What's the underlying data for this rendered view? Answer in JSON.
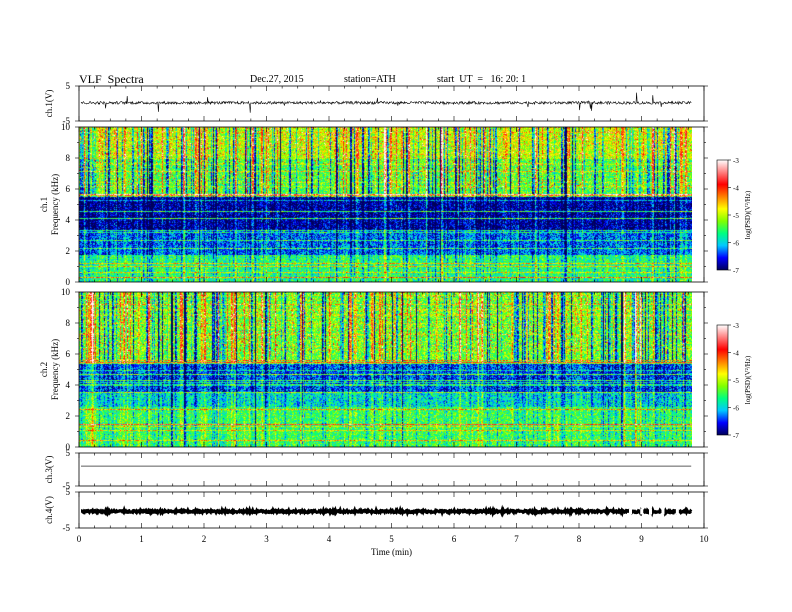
{
  "header": {
    "title": "VLF  Spectra",
    "date": "Dec.27, 2015",
    "station": "station=ATH",
    "start_ut": "start  UT  =   16: 20: 1"
  },
  "chart_data": [
    {
      "type": "line",
      "panel": "ch1-waveform",
      "ylabel": "ch.1(V)",
      "yticks": [
        "5",
        "-5"
      ],
      "ylim": [
        -5,
        5
      ],
      "xlim": [
        0,
        10
      ],
      "x_end": 9.8,
      "baseline": 0.2,
      "noise_amplitude": 0.4
    },
    {
      "type": "heatmap",
      "panel": "ch1-spectrogram",
      "ylabel": "ch.1",
      "ylabel2": "Frequency  (kHz)",
      "yticks": [
        "0",
        "2",
        "4",
        "6",
        "8",
        "10"
      ],
      "ylim": [
        0,
        10
      ],
      "xlim": [
        0,
        10
      ],
      "x_end": 9.8,
      "colorbar": {
        "label": "log(PSD)(V²/Hz)",
        "ticks": [
          "-3",
          "-4",
          "-5",
          "-6",
          "-7"
        ],
        "range": [
          -7,
          -3
        ],
        "colors": [
          "#00005a",
          "#0000ff",
          "#00c8ff",
          "#00ff80",
          "#80ff00",
          "#ffff00",
          "#ff8000",
          "#ff0000",
          "#ff8080",
          "#ffffff"
        ]
      },
      "bands": [
        {
          "f_from": 0,
          "f_to": 1.8,
          "level": -5.6
        },
        {
          "f_from": 1.8,
          "f_to": 3.4,
          "level": -6.3
        },
        {
          "f_from": 3.4,
          "f_to": 5.5,
          "level": -6.8
        },
        {
          "f_from": 5.5,
          "f_to": 8.0,
          "level": -5.4
        },
        {
          "f_from": 8.0,
          "f_to": 10,
          "level": -5.0
        }
      ]
    },
    {
      "type": "heatmap",
      "panel": "ch2-spectrogram",
      "ylabel": "ch.2",
      "ylabel2": "Frequency  (kHz)",
      "yticks": [
        "0",
        "2",
        "4",
        "6",
        "8",
        "10"
      ],
      "ylim": [
        0,
        10
      ],
      "xlim": [
        0,
        10
      ],
      "x_end": 9.8,
      "colorbar": {
        "label": "log(PSD)(V²/Hz)",
        "ticks": [
          "-3",
          "-4",
          "-5",
          "-6",
          "-7"
        ],
        "range": [
          -7,
          -3
        ],
        "colors": [
          "#00005a",
          "#0000ff",
          "#00c8ff",
          "#00ff80",
          "#80ff00",
          "#ffff00",
          "#ff8000",
          "#ff0000",
          "#ff8080",
          "#ffffff"
        ]
      },
      "bands": [
        {
          "f_from": 0,
          "f_to": 2.6,
          "level": -5.5
        },
        {
          "f_from": 2.6,
          "f_to": 3.6,
          "level": -5.9
        },
        {
          "f_from": 3.6,
          "f_to": 5.4,
          "level": -6.4
        },
        {
          "f_from": 5.4,
          "f_to": 10,
          "level": -5.3
        }
      ]
    },
    {
      "type": "line",
      "panel": "ch3-waveform",
      "ylabel": "ch.3(V)",
      "yticks": [
        "5",
        "-5"
      ],
      "ylim": [
        -5,
        5
      ],
      "xlim": [
        0,
        10
      ],
      "x_end": 9.8,
      "baseline": 1.0,
      "noise_amplitude": 0
    },
    {
      "type": "line",
      "panel": "ch4-waveform",
      "ylabel": "ch.4(V)",
      "yticks": [
        "5",
        "-5"
      ],
      "ylim": [
        -5,
        5
      ],
      "xlim": [
        0,
        10
      ],
      "x_end": 9.8,
      "baseline": -0.4,
      "noise_amplitude": 0.3
    }
  ],
  "x_axis": {
    "label": "Time  (min)",
    "ticks": [
      "0",
      "1",
      "2",
      "3",
      "4",
      "5",
      "6",
      "7",
      "8",
      "9",
      "10"
    ]
  }
}
